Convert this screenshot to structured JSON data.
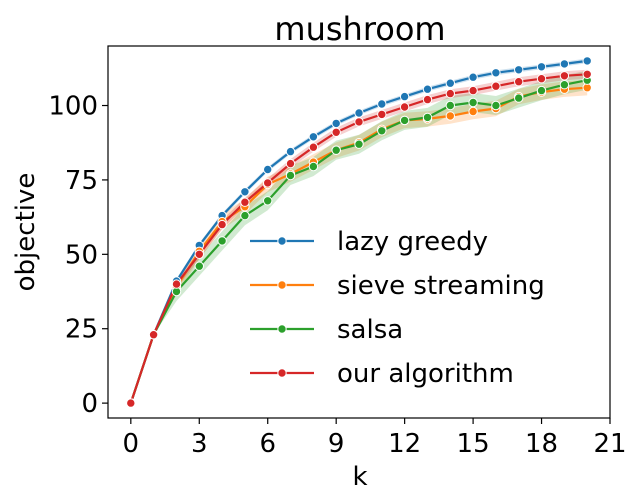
{
  "chart_data": {
    "type": "line",
    "title": "mushroom",
    "xlabel": "k",
    "ylabel": "objective",
    "xlim": [
      -1,
      21
    ],
    "ylim": [
      -5,
      120
    ],
    "xticks": [
      0,
      3,
      6,
      9,
      12,
      15,
      18,
      21
    ],
    "yticks": [
      0,
      25,
      50,
      75,
      100
    ],
    "grid": false,
    "legend_position": "lower-right",
    "x": [
      0,
      1,
      2,
      3,
      4,
      5,
      6,
      7,
      8,
      9,
      10,
      11,
      12,
      13,
      14,
      15,
      16,
      17,
      18,
      19,
      20
    ],
    "series": [
      {
        "name": "lazy greedy",
        "color": "#1f77b4",
        "values": [
          0,
          23,
          41,
          53,
          63,
          71,
          78.5,
          84.5,
          89.5,
          94,
          97.5,
          100.5,
          103,
          105.5,
          107.5,
          109.5,
          111,
          112,
          113,
          114,
          115
        ],
        "band": 0.8
      },
      {
        "name": "sieve streaming",
        "color": "#ff7f0e",
        "values": [
          0,
          23,
          39,
          51,
          61,
          66,
          73.5,
          77,
          81,
          85,
          87.5,
          92,
          95,
          95.5,
          96.5,
          98,
          99,
          103,
          104.5,
          105.5,
          106
        ],
        "band": 2.6
      },
      {
        "name": "salsa",
        "color": "#2ca02c",
        "values": [
          0,
          23,
          37.5,
          46,
          54.5,
          63,
          68,
          76.5,
          79.5,
          85,
          87,
          91.5,
          95,
          96,
          100,
          101,
          100,
          102.5,
          105,
          107,
          108.5
        ],
        "band": 3.2
      },
      {
        "name": "our algorithm",
        "color": "#d62728",
        "values": [
          0,
          23,
          40,
          50,
          60,
          67.5,
          74,
          80.5,
          86,
          91,
          94.5,
          97,
          99.5,
          102,
          104,
          105,
          106.5,
          108,
          109,
          110,
          110.5
        ],
        "band": 1.5
      }
    ]
  }
}
